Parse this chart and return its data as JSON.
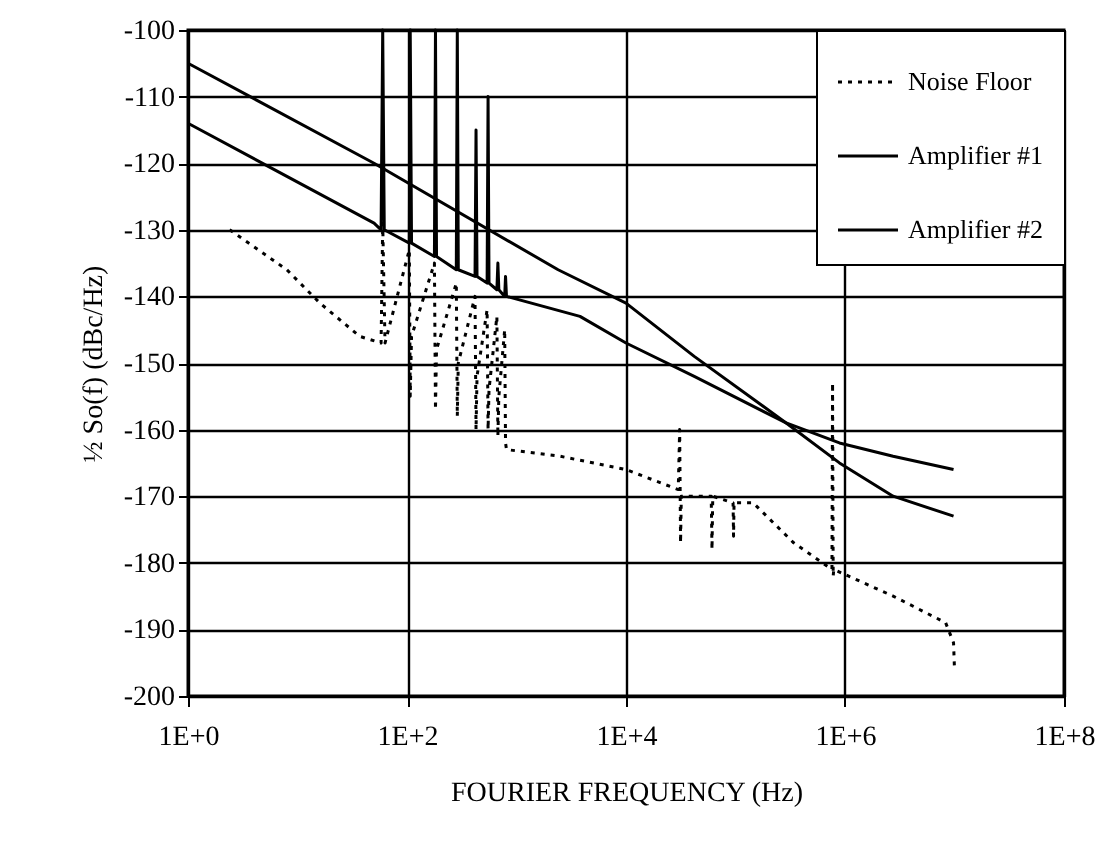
{
  "chart_data": {
    "type": "line",
    "xlabel": "FOURIER FREQUENCY (Hz)",
    "ylabel": "½ So(f)  (dBc/Hz)",
    "log": "x",
    "xlim": [
      1,
      100000000
    ],
    "ylim": [
      -200,
      -100
    ],
    "xticks": [
      {
        "value": 1,
        "label": "1E+0"
      },
      {
        "value": 100,
        "label": "1E+2"
      },
      {
        "value": 10000,
        "label": "1E+4"
      },
      {
        "value": 1000000,
        "label": "1E+6"
      },
      {
        "value": 100000000,
        "label": "1E+8"
      }
    ],
    "yticks": [
      -200,
      -190,
      -180,
      -170,
      -160,
      -150,
      -140,
      -130,
      -120,
      -110,
      -100
    ],
    "grid": true,
    "legend": "top right",
    "marker": "none",
    "series": [
      {
        "name": "Noise Floor",
        "color": "#000000",
        "line_style": "dotted",
        "x": [
          2.4,
          8,
          16,
          37,
          58,
          60,
          63,
          105,
          107,
          110,
          178,
          182,
          186,
          282,
          288,
          294,
          418,
          427,
          436,
          539,
          550,
          561,
          662,
          676,
          690,
          780,
          794,
          810,
          2500,
          10000,
          30000,
          30900,
          31500,
          32000,
          60000,
          61000,
          62000,
          95000,
          96000,
          97000,
          145000,
          340000,
          760000,
          770000,
          780000,
          790000,
          2750000,
          8300000,
          9800000,
          10000000
        ],
        "values": [
          -130,
          -136,
          -141,
          -146,
          -147,
          -129,
          -147,
          -133,
          -155,
          -146,
          -135,
          -157,
          -148,
          -138,
          -158,
          -150,
          -140,
          -160,
          -152,
          -142,
          -160,
          -154,
          -143,
          -161,
          -155,
          -145,
          -162,
          -163,
          -164,
          -166,
          -169,
          -160,
          -177,
          -170,
          -170,
          -178,
          -170,
          -171,
          -176,
          -171,
          -171,
          -177,
          -181,
          -153,
          -182,
          -181,
          -185,
          -189,
          -192,
          -196
        ]
      },
      {
        "name": "Amplifier #1",
        "color": "#000000",
        "line_style": "solid",
        "x": [
          1,
          50,
          2400,
          10000,
          42000,
          290000,
          890000,
          2750000,
          9800000
        ],
        "values": [
          -105,
          -120,
          -136,
          -141,
          -149,
          -159,
          -165,
          -170,
          -173
        ]
      },
      {
        "name": "Amplifier #2",
        "color": "#000000",
        "line_style": "solid",
        "x": [
          1,
          50,
          58,
          60,
          62,
          105,
          107,
          110,
          178,
          182,
          186,
          282,
          288,
          294,
          418,
          427,
          436,
          539,
          550,
          561,
          662,
          676,
          690,
          780,
          794,
          810,
          3800,
          10000,
          42000,
          290000,
          890000,
          2750000,
          9800000
        ],
        "values": [
          -114,
          -129,
          -130,
          -100,
          -130,
          -132,
          -100,
          -132,
          -134,
          -100,
          -134,
          -136,
          -100,
          -136,
          -137,
          -115,
          -137,
          -138,
          -110,
          -138,
          -139,
          -135,
          -139,
          -140,
          -137,
          -140,
          -143,
          -147,
          -152,
          -159,
          -162,
          -164,
          -166
        ]
      }
    ]
  }
}
